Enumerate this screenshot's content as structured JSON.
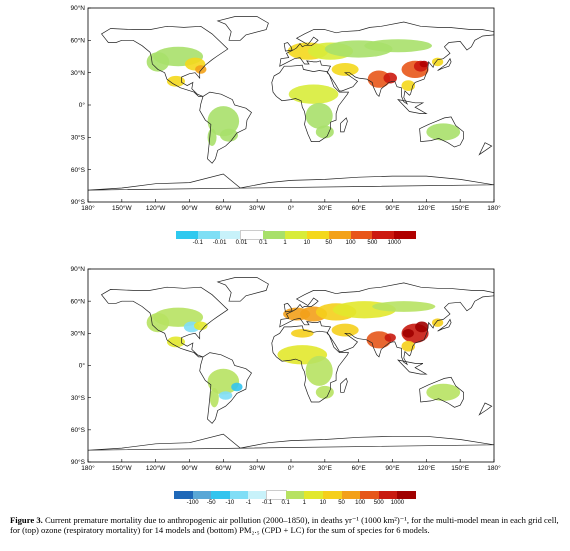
{
  "maps": [
    {
      "id": "ozone",
      "lat_labels": [
        "90°N",
        "60°N",
        "30°N",
        "0°",
        "30°S",
        "60°S",
        "90°S"
      ],
      "lon_labels": [
        "180°",
        "150°W",
        "120°W",
        "90°W",
        "60°W",
        "30°W",
        "0°",
        "30°E",
        "60°E",
        "90°E",
        "120°E",
        "150°E",
        "180°"
      ],
      "colorbar": {
        "ticks": [
          "-0.1",
          "-0.01",
          "0.01",
          "0.1",
          "1",
          "10",
          "50",
          "100",
          "500",
          "1000"
        ],
        "colors": [
          "#2ec9ef",
          "#7fdff5",
          "#c8f2fa",
          "#ffffff",
          "#a8e06a",
          "#d8ec3a",
          "#f4d81c",
          "#f3a21a",
          "#e8561a",
          "#cc1a10",
          "#b00000"
        ]
      }
    },
    {
      "id": "pm25",
      "lat_labels": [
        "90°N",
        "60°N",
        "30°N",
        "0°",
        "30°S",
        "60°S",
        "90°S"
      ],
      "lon_labels": [
        "180°",
        "150°W",
        "120°W",
        "90°W",
        "60°W",
        "30°W",
        "0°",
        "30°E",
        "60°E",
        "90°E",
        "120°E",
        "150°E",
        "180°"
      ],
      "colorbar": {
        "ticks": [
          "-100",
          "-50",
          "-10",
          "-1",
          "-0.1",
          "0.1",
          "1",
          "10",
          "50",
          "100",
          "500",
          "1000"
        ],
        "colors": [
          "#1f68b8",
          "#5aa7d6",
          "#33c4ee",
          "#80def6",
          "#c8f2fa",
          "#ffffff",
          "#b7e262",
          "#e2e82c",
          "#f5cf1c",
          "#f3a01a",
          "#e6561a",
          "#c81a10",
          "#a00000"
        ]
      }
    }
  ],
  "caption": {
    "label": "Figure 3.",
    "text": "Current premature mortality due to anthropogenic air pollution (2000–1850), in deaths yr⁻¹ (1000 km²)⁻¹, for the multi-model mean in each grid cell, for (top) ozone (respiratory mortality) for 14 models and (bottom) PM₂.₅ (CPD + LC) for the sum of species for 6 models."
  }
}
